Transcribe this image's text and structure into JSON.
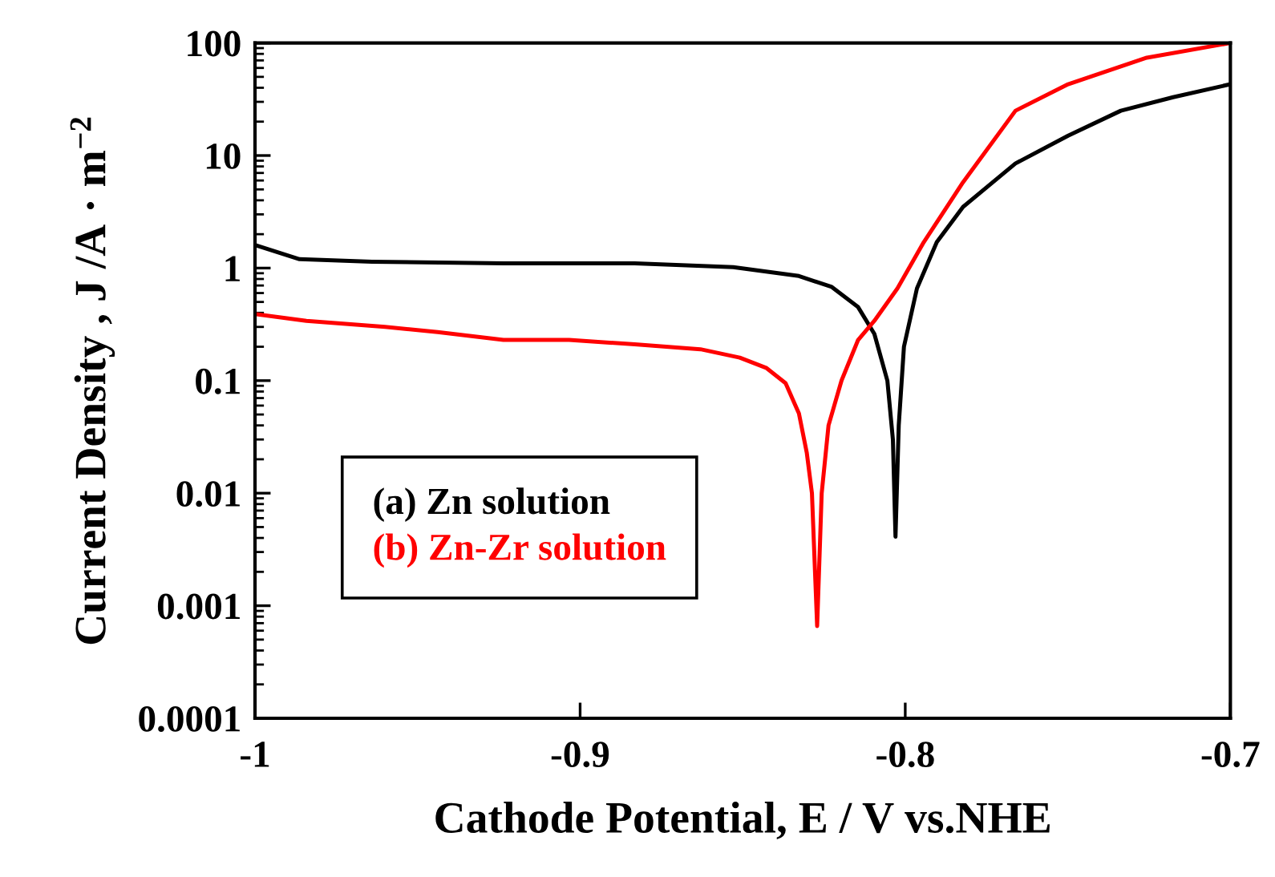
{
  "chart_data": {
    "type": "line",
    "xlabel": "Cathode Potential, E / V vs.NHE",
    "ylabel": "Current Density , J /A · m$^{−2}$",
    "log": "y",
    "xlim": [
      -1,
      -0.7
    ],
    "xticks": [
      -1,
      -0.9,
      -0.8,
      -0.7
    ],
    "ylim": [
      0.0001,
      100
    ],
    "yticks": [
      0.0001,
      0.001,
      0.01,
      0.1,
      1,
      10,
      100
    ],
    "grid": false,
    "legend": "bottom left",
    "marker": "none",
    "line_style": "solid",
    "series": [
      {
        "name": "(a) Zn solution",
        "color": "#000000",
        "x": [
          -1,
          -0.9863,
          -0.964,
          -0.9236,
          -0.8832,
          -0.8529,
          -0.8327,
          -0.8226,
          -0.8145,
          -0.8095,
          -0.8055,
          -0.8038,
          -0.803,
          -0.802,
          -0.8004,
          -0.7964,
          -0.7903,
          -0.7822,
          -0.7661,
          -0.7499,
          -0.7337,
          -0.7176,
          -0.7
        ],
        "values": [
          1.6,
          1.2,
          1.14,
          1.1,
          1.1,
          1.02,
          0.85,
          0.68,
          0.45,
          0.26,
          0.1,
          0.03,
          0.0041,
          0.04,
          0.2,
          0.66,
          1.7,
          3.5,
          8.5,
          15,
          25,
          33,
          43
        ]
      },
      {
        "name": "(b) Zn-Zr solution",
        "color": "#ff0000",
        "x": [
          -1,
          -0.9842,
          -0.96,
          -0.9438,
          -0.9236,
          -0.9034,
          -0.8832,
          -0.863,
          -0.8509,
          -0.8428,
          -0.8368,
          -0.8327,
          -0.8303,
          -0.8287,
          -0.8271,
          -0.8257,
          -0.8236,
          -0.8196,
          -0.8145,
          -0.8095,
          -0.8024,
          -0.7943,
          -0.7822,
          -0.7661,
          -0.7499,
          -0.7257,
          -0.7
        ],
        "values": [
          0.39,
          0.34,
          0.3,
          0.27,
          0.23,
          0.23,
          0.21,
          0.19,
          0.16,
          0.13,
          0.095,
          0.051,
          0.023,
          0.01,
          0.00066,
          0.01,
          0.04,
          0.1,
          0.23,
          0.34,
          0.66,
          1.7,
          5.8,
          25,
          43,
          74,
          100
        ]
      }
    ]
  }
}
